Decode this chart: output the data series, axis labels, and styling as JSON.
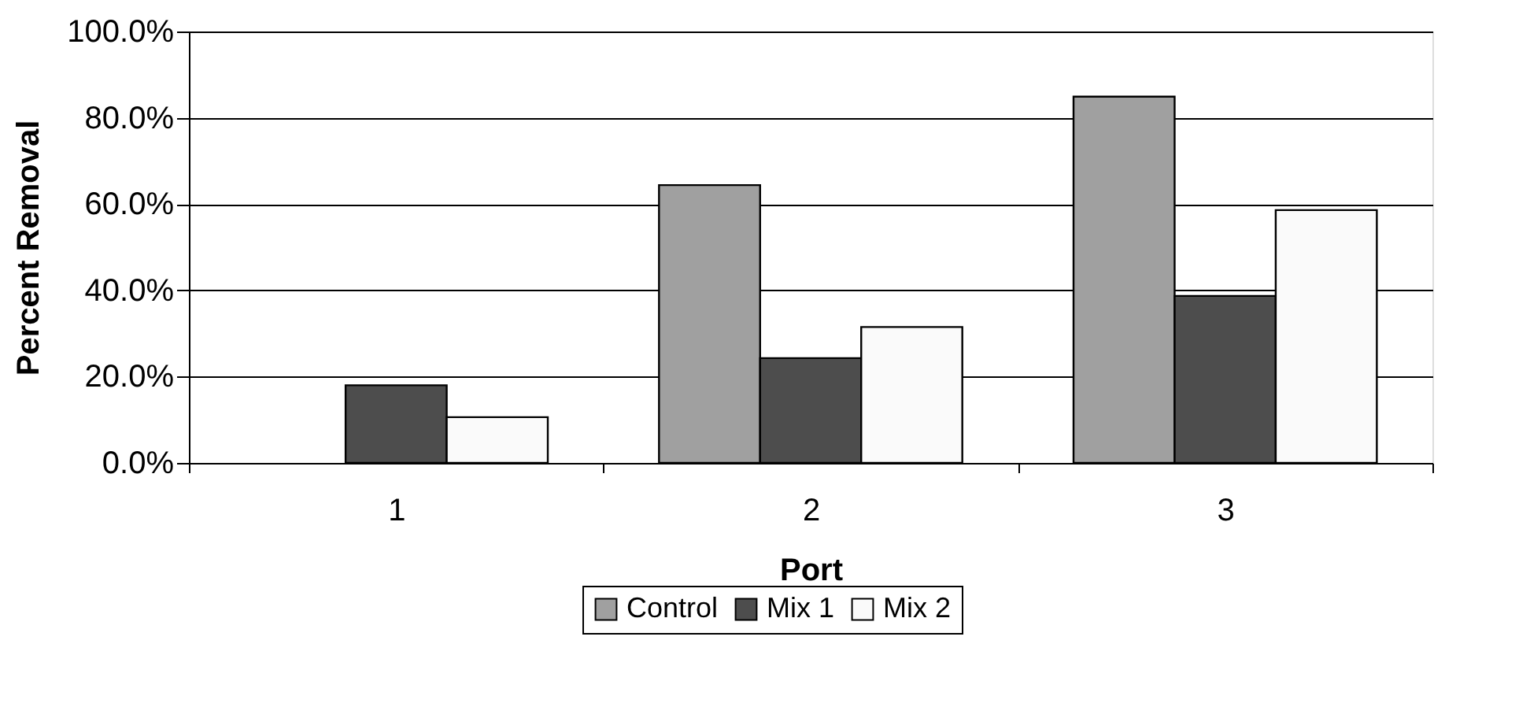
{
  "chart_data": {
    "type": "bar",
    "xlabel": "Port",
    "ylabel": "Percent Removal",
    "categories": [
      "1",
      "2",
      "3"
    ],
    "series": [
      {
        "name": "Control",
        "color": "#a0a0a0",
        "values": [
          null,
          64.4,
          84.9
        ]
      },
      {
        "name": "Mix 1",
        "color": "#4d4d4d",
        "values": [
          18.0,
          24.3,
          38.7
        ]
      },
      {
        "name": "Mix 2",
        "color": "#fafafa",
        "values": [
          10.6,
          31.5,
          58.6
        ]
      }
    ],
    "ylim": [
      0,
      100
    ],
    "yticks": [
      {
        "value": 0,
        "label": "0.0%"
      },
      {
        "value": 20,
        "label": "20.0%"
      },
      {
        "value": 40,
        "label": "40.0%"
      },
      {
        "value": 60,
        "label": "60.0%"
      },
      {
        "value": 80,
        "label": "80.0%"
      },
      {
        "value": 100,
        "label": "100.0%"
      }
    ],
    "grid": "y",
    "legend": "bottom"
  }
}
